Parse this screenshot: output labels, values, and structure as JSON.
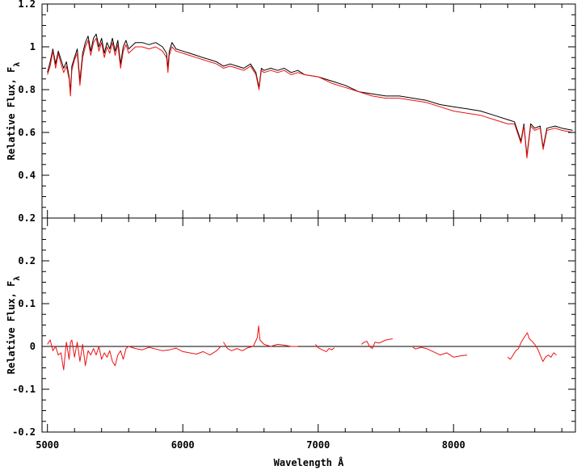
{
  "chart_data": [
    {
      "type": "line",
      "panel": "top",
      "xlabel": "",
      "ylabel": "Relative Flux, F",
      "ylabel_sub": "λ",
      "xlim": [
        4960,
        8900
      ],
      "ylim": [
        0.2,
        1.2
      ],
      "yticks": [
        0.2,
        0.4,
        0.6,
        0.8,
        1.0,
        1.2
      ],
      "ytick_labels": [
        "0.2",
        "0.4",
        "0.6",
        "0.8",
        "1",
        "1.2"
      ],
      "series": [
        {
          "color": "#000000",
          "x": [
            5000,
            5020,
            5040,
            5060,
            5080,
            5100,
            5120,
            5140,
            5160,
            5170,
            5180,
            5200,
            5220,
            5240,
            5260,
            5280,
            5300,
            5320,
            5340,
            5360,
            5380,
            5400,
            5420,
            5440,
            5460,
            5480,
            5500,
            5520,
            5540,
            5560,
            5580,
            5600,
            5650,
            5700,
            5750,
            5800,
            5850,
            5880,
            5890,
            5900,
            5920,
            5950,
            6000,
            6050,
            6100,
            6150,
            6200,
            6250,
            6300,
            6350,
            6400,
            6450,
            6500,
            6540,
            6563,
            6580,
            6600,
            6650,
            6700,
            6750,
            6800,
            6850,
            6900,
            7000,
            7100,
            7200,
            7300,
            7400,
            7500,
            7600,
            7700,
            7800,
            7900,
            8000,
            8100,
            8200,
            8300,
            8400,
            8450,
            8498,
            8520,
            8542,
            8570,
            8600,
            8640,
            8662,
            8690,
            8750,
            8800,
            8880
          ],
          "y": [
            0.88,
            0.93,
            0.99,
            0.92,
            0.98,
            0.94,
            0.9,
            0.93,
            0.86,
            0.79,
            0.91,
            0.95,
            0.99,
            0.84,
            0.97,
            1.02,
            1.05,
            0.98,
            1.04,
            1.06,
            1.0,
            1.04,
            0.97,
            1.02,
            0.99,
            1.04,
            0.98,
            1.03,
            0.92,
            1.0,
            1.03,
            0.99,
            1.02,
            1.02,
            1.01,
            1.02,
            1.0,
            0.97,
            0.9,
            0.98,
            1.02,
            0.99,
            0.98,
            0.97,
            0.96,
            0.95,
            0.94,
            0.93,
            0.91,
            0.92,
            0.91,
            0.9,
            0.92,
            0.88,
            0.81,
            0.9,
            0.89,
            0.9,
            0.89,
            0.9,
            0.88,
            0.89,
            0.87,
            0.86,
            0.84,
            0.82,
            0.79,
            0.78,
            0.77,
            0.77,
            0.76,
            0.75,
            0.73,
            0.72,
            0.71,
            0.7,
            0.68,
            0.66,
            0.65,
            0.56,
            0.64,
            0.49,
            0.64,
            0.62,
            0.63,
            0.53,
            0.62,
            0.63,
            0.62,
            0.61
          ]
        },
        {
          "color": "#ee1111",
          "x": [
            5000,
            5020,
            5040,
            5060,
            5080,
            5100,
            5120,
            5140,
            5160,
            5170,
            5180,
            5200,
            5220,
            5240,
            5260,
            5280,
            5300,
            5320,
            5340,
            5360,
            5380,
            5400,
            5420,
            5440,
            5460,
            5480,
            5500,
            5520,
            5540,
            5560,
            5580,
            5600,
            5650,
            5700,
            5750,
            5800,
            5850,
            5880,
            5890,
            5900,
            5920,
            5950,
            6000,
            6050,
            6100,
            6150,
            6200,
            6250,
            6300,
            6350,
            6400,
            6450,
            6500,
            6540,
            6563,
            6580,
            6600,
            6650,
            6700,
            6750,
            6800,
            6850,
            6900,
            7000,
            7100,
            7200,
            7300,
            7400,
            7500,
            7600,
            7700,
            7800,
            7900,
            8000,
            8100,
            8200,
            8300,
            8400,
            8450,
            8498,
            8520,
            8542,
            8570,
            8600,
            8640,
            8662,
            8690,
            8750,
            8800,
            8880
          ],
          "y": [
            0.87,
            0.91,
            0.98,
            0.9,
            0.97,
            0.92,
            0.88,
            0.91,
            0.85,
            0.77,
            0.89,
            0.94,
            0.97,
            0.82,
            0.95,
            1.0,
            1.03,
            0.96,
            1.02,
            1.04,
            0.98,
            1.02,
            0.95,
            1.0,
            0.97,
            1.02,
            0.96,
            1.01,
            0.9,
            0.98,
            1.01,
            0.97,
            1.0,
            1.0,
            0.99,
            1.0,
            0.98,
            0.95,
            0.88,
            0.96,
            1.0,
            0.98,
            0.97,
            0.96,
            0.95,
            0.94,
            0.93,
            0.92,
            0.9,
            0.91,
            0.9,
            0.89,
            0.91,
            0.87,
            0.8,
            0.89,
            0.88,
            0.89,
            0.88,
            0.89,
            0.87,
            0.88,
            0.87,
            0.86,
            0.83,
            0.81,
            0.79,
            0.77,
            0.76,
            0.76,
            0.75,
            0.74,
            0.72,
            0.7,
            0.69,
            0.68,
            0.66,
            0.64,
            0.64,
            0.55,
            0.63,
            0.48,
            0.63,
            0.61,
            0.62,
            0.52,
            0.61,
            0.62,
            0.61,
            0.6
          ]
        }
      ]
    },
    {
      "type": "line",
      "panel": "bottom",
      "xlabel": "Wavelength Å",
      "ylabel": "Relative Flux, F",
      "ylabel_sub": "λ",
      "xlim": [
        4960,
        8900
      ],
      "ylim": [
        -0.2,
        0.3
      ],
      "xticks": [
        5000,
        6000,
        7000,
        8000
      ],
      "xtick_labels": [
        "5000",
        "6000",
        "7000",
        "8000"
      ],
      "yticks": [
        -0.2,
        -0.1,
        0,
        0.1,
        0.2
      ],
      "ytick_labels": [
        "-0.2",
        "-0.1",
        "0",
        "0.1",
        "0.2"
      ],
      "reference_line": 0,
      "series": [
        {
          "color": "#ee1111",
          "segments": [
            {
              "x": [
                5000,
                5020,
                5040,
                5060,
                5080,
                5100,
                5110,
                5120,
                5130,
                5140,
                5160,
                5170,
                5180,
                5200,
                5220,
                5240,
                5260,
                5280,
                5300,
                5320,
                5340,
                5360,
                5380,
                5400,
                5420,
                5440,
                5460,
                5480,
                5500,
                5520,
                5540,
                5560,
                5580,
                5600,
                5650,
                5700,
                5750,
                5800,
                5850,
                5900,
                5950,
                6000,
                6050,
                6100,
                6150,
                6200,
                6250,
                6280
              ],
              "y": [
                0.005,
                0.015,
                -0.01,
                0.0,
                -0.02,
                -0.015,
                -0.035,
                -0.055,
                -0.02,
                0.01,
                -0.03,
                0.01,
                0.015,
                -0.025,
                0.01,
                -0.035,
                0.005,
                -0.045,
                -0.01,
                -0.02,
                -0.005,
                -0.02,
                0.0,
                -0.03,
                -0.015,
                -0.025,
                -0.01,
                -0.035,
                -0.045,
                -0.02,
                -0.01,
                -0.03,
                -0.005,
                0.0,
                -0.005,
                -0.008,
                -0.002,
                -0.006,
                -0.01,
                -0.008,
                -0.004,
                -0.012,
                -0.015,
                -0.018,
                -0.012,
                -0.02,
                -0.01,
                0.0
              ]
            },
            {
              "x": [
                6300,
                6330,
                6360,
                6400,
                6440,
                6480,
                6520,
                6550,
                6560,
                6570,
                6600,
                6650,
                6700,
                6750,
                6800,
                6850
              ],
              "y": [
                0.01,
                -0.005,
                -0.01,
                -0.005,
                -0.01,
                -0.003,
                0.0,
                0.02,
                0.048,
                0.015,
                0.005,
                0.0,
                0.005,
                0.003,
                0.0,
                0.0
              ]
            },
            {
              "x": [
                6980,
                7000,
                7030,
                7060,
                7080,
                7100,
                7120
              ],
              "y": [
                0.005,
                -0.003,
                -0.008,
                -0.012,
                -0.005,
                -0.008,
                -0.003
              ]
            },
            {
              "x": [
                7320,
                7340,
                7360,
                7380,
                7400,
                7420,
                7450,
                7500,
                7550
              ],
              "y": [
                0.005,
                0.01,
                0.012,
                0.0,
                -0.005,
                0.01,
                0.008,
                0.015,
                0.018
              ]
            },
            {
              "x": [
                7700,
                7720,
                7740,
                7760,
                7800,
                7850,
                7900,
                7950,
                8000,
                8050,
                8100
              ],
              "y": [
                -0.002,
                -0.006,
                -0.004,
                -0.002,
                -0.005,
                -0.012,
                -0.02,
                -0.015,
                -0.025,
                -0.022,
                -0.02
              ]
            },
            {
              "x": [
                8400,
                8420,
                8440,
                8460,
                8480,
                8500,
                8520,
                8545,
                8560,
                8580,
                8600,
                8620,
                8640,
                8660,
                8680,
                8700,
                8720,
                8740,
                8760
              ],
              "y": [
                -0.025,
                -0.03,
                -0.02,
                -0.01,
                -0.005,
                0.01,
                0.02,
                0.032,
                0.018,
                0.012,
                0.005,
                -0.005,
                -0.02,
                -0.035,
                -0.025,
                -0.02,
                -0.025,
                -0.015,
                -0.02
              ]
            }
          ]
        }
      ]
    }
  ]
}
